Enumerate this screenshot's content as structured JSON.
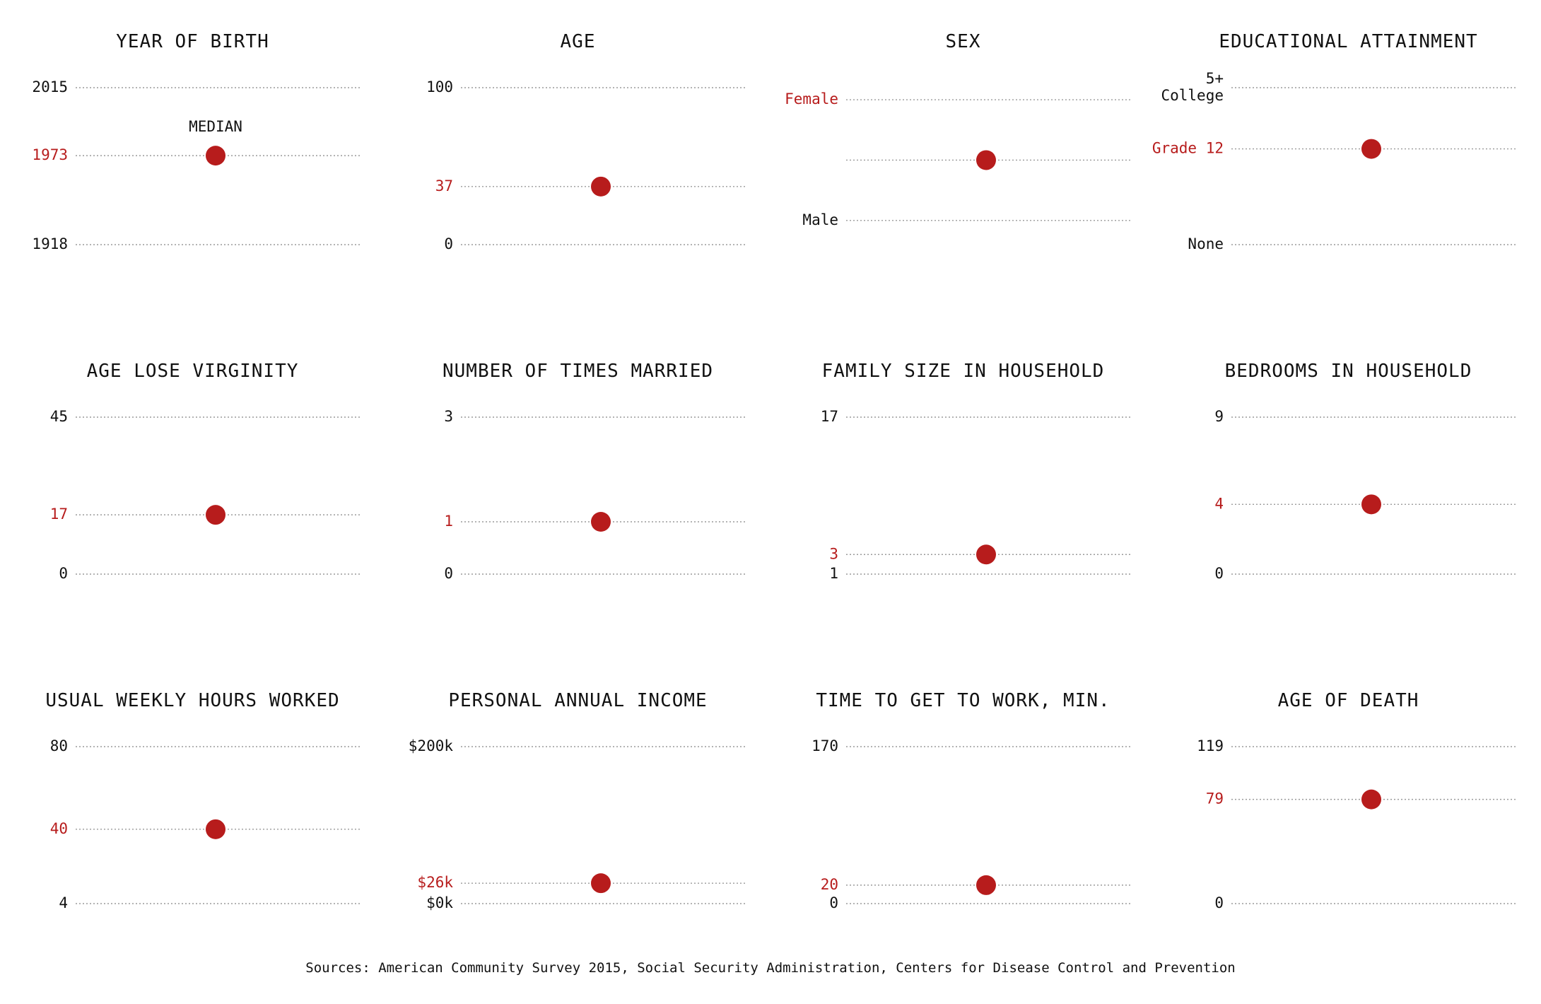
{
  "colors": {
    "accent": "#b71c1c",
    "text": "#111111",
    "gridline": "#9a9a9a"
  },
  "median_label": "MEDIAN",
  "sources": "Sources: American Community Survey 2015, Social Security Administration, Centers for Disease Control and Prevention",
  "chart_data": [
    {
      "type": "scatter",
      "title": "YEAR OF BIRTH",
      "ylim": [
        1918,
        2015
      ],
      "ticks": [
        {
          "value": 2015,
          "label": "2015"
        },
        {
          "value": 1918,
          "label": "1918"
        }
      ],
      "median": {
        "value": 1973,
        "label": "1973"
      },
      "show_median_label": true
    },
    {
      "type": "scatter",
      "title": "AGE",
      "ylim": [
        0,
        100
      ],
      "ticks": [
        {
          "value": 100,
          "label": "100"
        },
        {
          "value": 0,
          "label": "0"
        }
      ],
      "median": {
        "value": 37,
        "label": "37"
      }
    },
    {
      "type": "scatter",
      "title": "SEX",
      "ylim": [
        -1.4,
        1.2
      ],
      "ticks": [
        {
          "value": 1,
          "label": "Female",
          "highlight": true
        },
        {
          "value": 0,
          "label": ""
        },
        {
          "value": -1,
          "label": "Male"
        }
      ],
      "median": {
        "value": 0,
        "label": ""
      }
    },
    {
      "type": "scatter",
      "title": "EDUCATIONAL ATTAINMENT",
      "ylim": [
        0,
        10
      ],
      "ticks": [
        {
          "value": 10,
          "label": "5+ College"
        },
        {
          "value": 0,
          "label": "None"
        }
      ],
      "median": {
        "value": 6.1,
        "label": "Grade 12"
      }
    },
    {
      "type": "scatter",
      "title": "AGE LOSE VIRGINITY",
      "ylim": [
        0,
        45
      ],
      "ticks": [
        {
          "value": 45,
          "label": "45"
        },
        {
          "value": 0,
          "label": "0"
        }
      ],
      "median": {
        "value": 17,
        "label": "17"
      }
    },
    {
      "type": "scatter",
      "title": "NUMBER OF TIMES MARRIED",
      "ylim": [
        0,
        3
      ],
      "ticks": [
        {
          "value": 3,
          "label": "3"
        },
        {
          "value": 0,
          "label": "0"
        }
      ],
      "median": {
        "value": 1,
        "label": "1"
      }
    },
    {
      "type": "scatter",
      "title": "FAMILY SIZE IN HOUSEHOLD",
      "ylim": [
        1,
        17
      ],
      "ticks": [
        {
          "value": 17,
          "label": "17"
        },
        {
          "value": 1,
          "label": "1"
        }
      ],
      "median": {
        "value": 3,
        "label": "3"
      }
    },
    {
      "type": "scatter",
      "title": "BEDROOMS IN HOUSEHOLD",
      "ylim": [
        0,
        9
      ],
      "ticks": [
        {
          "value": 9,
          "label": "9"
        },
        {
          "value": 0,
          "label": "0"
        }
      ],
      "median": {
        "value": 4,
        "label": "4"
      }
    },
    {
      "type": "scatter",
      "title": "USUAL WEEKLY HOURS WORKED",
      "ylim": [
        4,
        80
      ],
      "ticks": [
        {
          "value": 80,
          "label": "80"
        },
        {
          "value": 4,
          "label": "4"
        }
      ],
      "median": {
        "value": 40,
        "label": "40"
      }
    },
    {
      "type": "scatter",
      "title": "PERSONAL ANNUAL INCOME",
      "ylim": [
        0,
        200
      ],
      "ticks": [
        {
          "value": 200,
          "label": "$200k"
        },
        {
          "value": 0,
          "label": "$0k"
        }
      ],
      "median": {
        "value": 26,
        "label": "$26k"
      }
    },
    {
      "type": "scatter",
      "title": "TIME TO GET TO WORK, MIN.",
      "ylim": [
        0,
        170
      ],
      "ticks": [
        {
          "value": 170,
          "label": "170"
        },
        {
          "value": 0,
          "label": "0"
        }
      ],
      "median": {
        "value": 20,
        "label": "20"
      }
    },
    {
      "type": "scatter",
      "title": "AGE OF DEATH",
      "ylim": [
        0,
        119
      ],
      "ticks": [
        {
          "value": 119,
          "label": "119"
        },
        {
          "value": 0,
          "label": "0"
        }
      ],
      "median": {
        "value": 79,
        "label": "79"
      }
    }
  ]
}
